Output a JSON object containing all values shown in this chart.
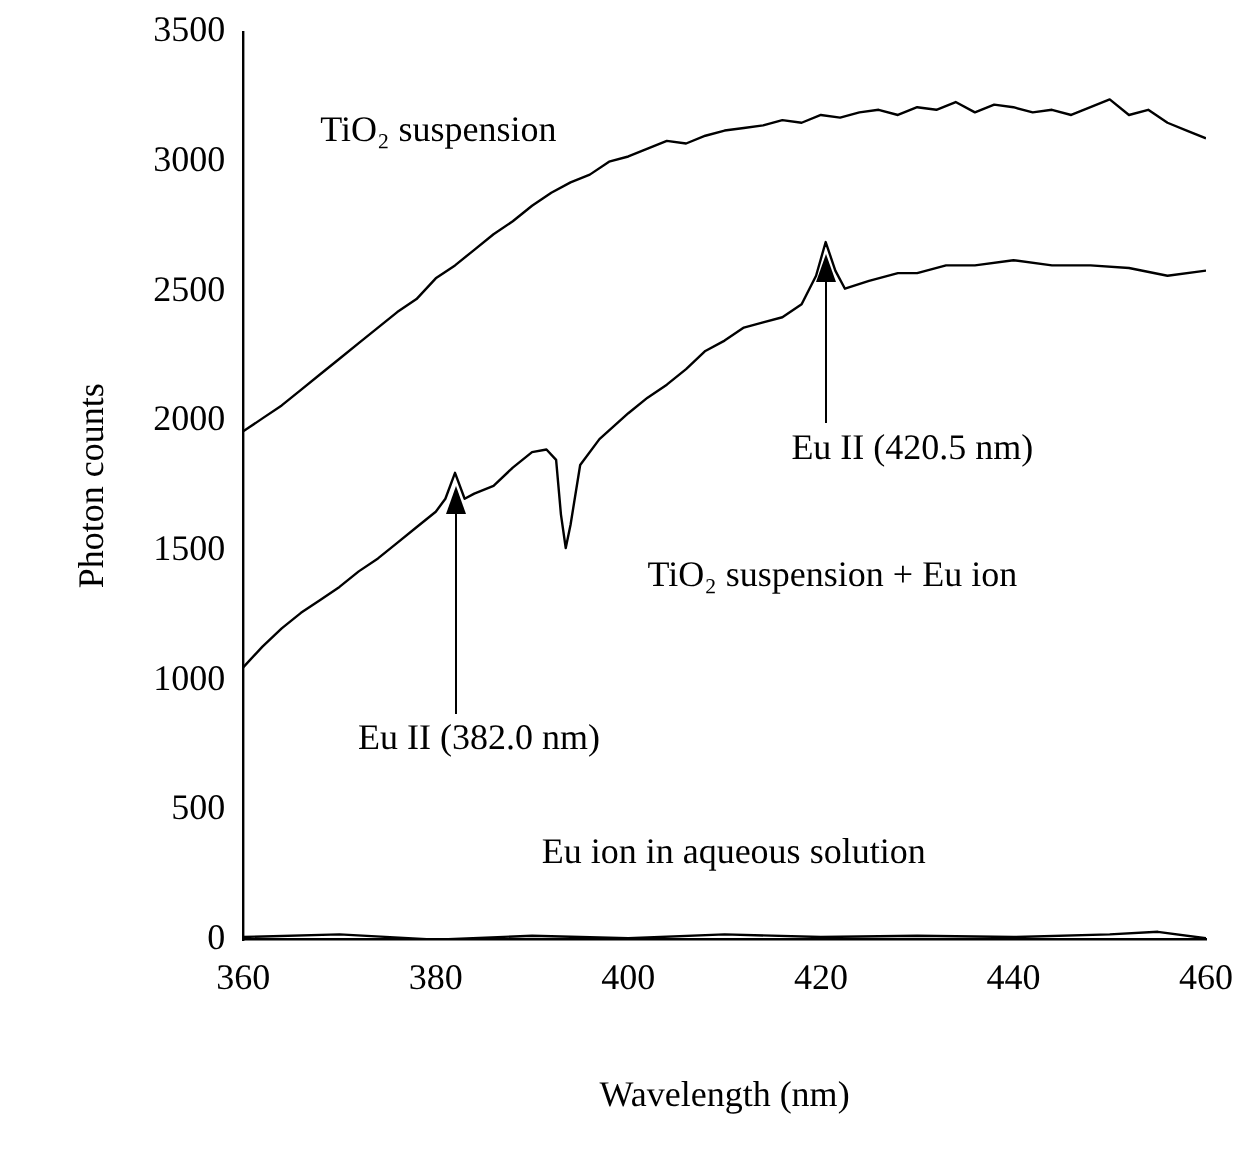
{
  "chart_data": {
    "type": "line",
    "xlabel": "Wavelength (nm)",
    "ylabel": "Photon counts",
    "xlim": [
      360,
      460
    ],
    "ylim": [
      0,
      3500
    ],
    "xticks": [
      360,
      380,
      400,
      420,
      440,
      460
    ],
    "yticks": [
      0,
      500,
      1000,
      1500,
      2000,
      2500,
      3000,
      3500
    ],
    "grid": false,
    "legend": false,
    "marker": "none",
    "line_style": "solid",
    "series": [
      {
        "name": "TiO₂ suspension",
        "color": "#000000",
        "x": [
          360,
          362,
          364,
          366,
          368,
          370,
          372,
          374,
          376,
          378,
          380,
          382,
          384,
          386,
          388,
          390,
          392,
          394,
          396,
          398,
          400,
          402,
          404,
          406,
          408,
          410,
          412,
          414,
          416,
          418,
          420,
          422,
          424,
          426,
          428,
          430,
          432,
          434,
          436,
          438,
          440,
          442,
          444,
          446,
          448,
          450,
          452,
          454,
          456,
          458,
          460
        ],
        "values": [
          1960,
          2010,
          2060,
          2120,
          2180,
          2240,
          2300,
          2360,
          2420,
          2470,
          2550,
          2600,
          2660,
          2720,
          2770,
          2830,
          2880,
          2920,
          2950,
          3000,
          3020,
          3050,
          3080,
          3070,
          3100,
          3120,
          3130,
          3140,
          3160,
          3150,
          3180,
          3170,
          3190,
          3200,
          3180,
          3210,
          3200,
          3230,
          3190,
          3220,
          3210,
          3190,
          3200,
          3180,
          3210,
          3240,
          3180,
          3200,
          3150,
          3120,
          3090
        ]
      },
      {
        "name": "TiO₂ suspension + Eu ion",
        "color": "#000000",
        "x": [
          360,
          362,
          364,
          366,
          368,
          370,
          372,
          374,
          376,
          378,
          380,
          381,
          382,
          383,
          384,
          386,
          388,
          390,
          391.5,
          392.5,
          393,
          393.5,
          394,
          395,
          397,
          400,
          402,
          404,
          406,
          408,
          410,
          412,
          414,
          416,
          418,
          419.5,
          420.5,
          421.5,
          422.5,
          425,
          428,
          430,
          433,
          436,
          440,
          444,
          448,
          452,
          456,
          460
        ],
        "values": [
          1050,
          1130,
          1200,
          1260,
          1310,
          1360,
          1420,
          1470,
          1530,
          1590,
          1650,
          1700,
          1800,
          1700,
          1720,
          1750,
          1820,
          1880,
          1890,
          1850,
          1640,
          1510,
          1600,
          1830,
          1930,
          2030,
          2090,
          2140,
          2200,
          2270,
          2310,
          2360,
          2380,
          2400,
          2450,
          2560,
          2690,
          2580,
          2510,
          2540,
          2570,
          2570,
          2600,
          2600,
          2620,
          2600,
          2600,
          2590,
          2560,
          2580
        ]
      },
      {
        "name": "Eu ion in aqueous solution",
        "color": "#000000",
        "x": [
          360,
          370,
          380,
          390,
          400,
          410,
          420,
          430,
          440,
          450,
          455,
          460
        ],
        "values": [
          10,
          20,
          0,
          15,
          5,
          20,
          10,
          15,
          10,
          20,
          30,
          5
        ]
      }
    ],
    "annotations": [
      "Eu II (382.0 nm)",
      "Eu II (420.5 nm)"
    ]
  }
}
